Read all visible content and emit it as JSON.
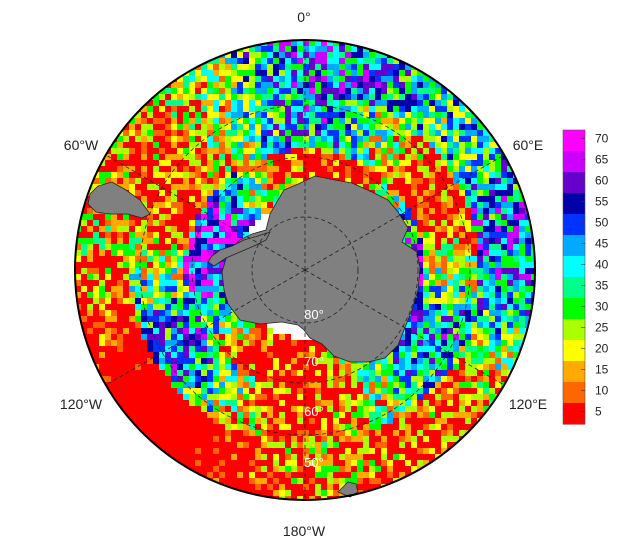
{
  "map": {
    "projection": "south-polar-stereographic",
    "longitude_labels": [
      {
        "id": "lon-0",
        "text": "0°"
      },
      {
        "id": "lon-60e",
        "text": "60°E"
      },
      {
        "id": "lon-120e",
        "text": "120°E"
      },
      {
        "id": "lon-180w",
        "text": "180°W"
      },
      {
        "id": "lon-120w",
        "text": "120°W"
      },
      {
        "id": "lon-60w",
        "text": "60°W"
      }
    ],
    "latitude_labels": [
      {
        "id": "lat-80",
        "text": "80°"
      },
      {
        "id": "lat-70",
        "text": "70°"
      },
      {
        "id": "lat-60",
        "text": "60°"
      },
      {
        "id": "lat-50",
        "text": "50°"
      }
    ],
    "land_color": "#808080",
    "grid_style": "dashed",
    "colorbar": {
      "ticks": [
        "70",
        "65",
        "60",
        "55",
        "50",
        "45",
        "40",
        "35",
        "30",
        "25",
        "20",
        "15",
        "10",
        "5"
      ],
      "tick_values": [
        70,
        65,
        60,
        55,
        50,
        45,
        40,
        35,
        30,
        25,
        20,
        15,
        10,
        5
      ],
      "range": [
        2,
        72
      ],
      "palette": [
        "#ff0000",
        "#ff6600",
        "#ffaa00",
        "#ffff00",
        "#aaff00",
        "#00ff00",
        "#00ff88",
        "#00ffff",
        "#00aaff",
        "#0033ff",
        "#0000aa",
        "#6600cc",
        "#cc00ff",
        "#ff00ff"
      ]
    }
  }
}
